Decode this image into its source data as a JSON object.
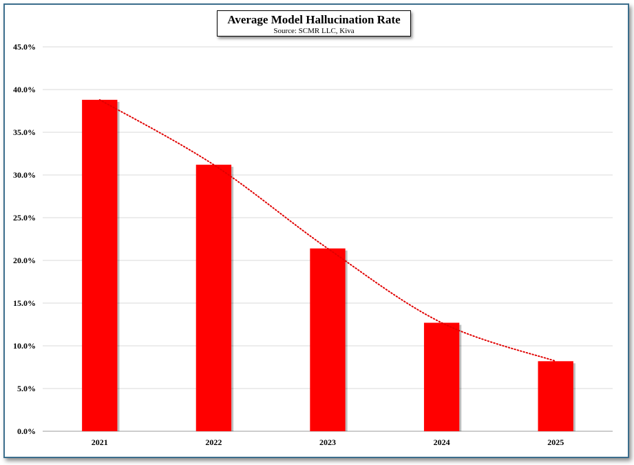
{
  "chart_data": {
    "type": "bar",
    "title": "Average Model Hallucination Rate",
    "subtitle": "Source: SCMR LLC, Kiva",
    "categories": [
      "2021",
      "2022",
      "2023",
      "2024",
      "2025"
    ],
    "values": [
      38.8,
      31.2,
      21.4,
      12.7,
      8.2
    ],
    "value_format": "percent",
    "ylim": [
      0,
      45
    ],
    "ytick_step": 5,
    "ytick_labels": [
      "0.0%",
      "5.0%",
      "10.0%",
      "15.0%",
      "20.0%",
      "25.0%",
      "30.0%",
      "35.0%",
      "40.0%",
      "45.0%"
    ],
    "xlabel": "",
    "ylabel": "",
    "grid": true,
    "trendline": {
      "style": "dotted",
      "color": "#e00000"
    },
    "bar_color": "#ff0000",
    "frame_color": "#3a6d8c"
  }
}
